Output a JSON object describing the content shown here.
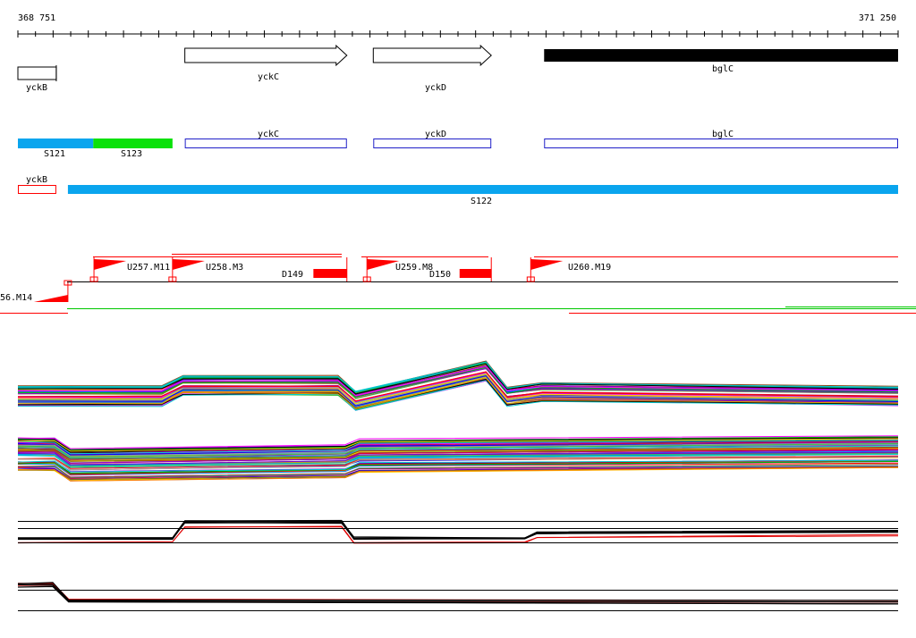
{
  "ruler": {
    "start_label": "368 751",
    "end_label": "371 250",
    "start": 368751,
    "end": 371250
  },
  "genes": [
    {
      "label": "yckB",
      "start": 368751,
      "end": 368860,
      "style": "box",
      "strand": "-"
    },
    {
      "label": "yckC",
      "start": 369225,
      "end": 369685,
      "style": "arrow",
      "strand": "+"
    },
    {
      "label": "yckD",
      "start": 369760,
      "end": 370095,
      "style": "arrow",
      "strand": "+"
    },
    {
      "label": "bglC",
      "start": 370245,
      "end": 371250,
      "style": "filled",
      "strand": "+"
    }
  ],
  "segments_track1": [
    {
      "label": "S121",
      "start": 368751,
      "end": 368965,
      "color": "#0aa5ee"
    },
    {
      "label": "S123",
      "start": 368965,
      "end": 369190,
      "color": "#0ae10a"
    }
  ],
  "gene_outlines_track1": [
    {
      "label": "yckC",
      "start": 369225,
      "end": 369685
    },
    {
      "label": "yckD",
      "start": 369760,
      "end": 370095
    },
    {
      "label": "bglC",
      "start": 370245,
      "end": 371250
    }
  ],
  "gene_outlines_track2": [
    {
      "label": "yckB",
      "start": 368751,
      "end": 368860
    }
  ],
  "segments_track2": [
    {
      "label": "S122",
      "start": 368893,
      "end": 371250,
      "color": "#0aa5ee"
    }
  ],
  "promoters": [
    {
      "label": "U257.M11",
      "pos": 368967
    },
    {
      "label": "U258.M3",
      "pos": 369190
    },
    {
      "label": "U259.M8",
      "pos": 369742
    },
    {
      "label": "U260.M19",
      "pos": 370207
    }
  ],
  "promoter_lower": {
    "label": "56.M14",
    "pos": 368893
  },
  "terminators": [
    {
      "label": "D149",
      "start": 369590,
      "end": 369685
    },
    {
      "label": "D150",
      "start": 370005,
      "end": 370095
    }
  ],
  "colors": {
    "gene_outline": "#2020c8",
    "feature_red": "#ff0000",
    "green_line": "#00c800",
    "profile_highlight": "#e00000"
  },
  "profiles": {
    "group_a_breaks": [
      368751,
      369160,
      369220,
      369660,
      369710,
      370080,
      370140,
      370240,
      371250
    ],
    "group_b_breaks": [
      368751,
      368855,
      368900,
      369680,
      369720,
      371250
    ],
    "group_c_breaks": [
      368751,
      369190,
      369225,
      369670,
      369705,
      370190,
      370225,
      371250
    ],
    "group_d_breaks": [
      368751,
      368850,
      368895,
      371250
    ]
  }
}
